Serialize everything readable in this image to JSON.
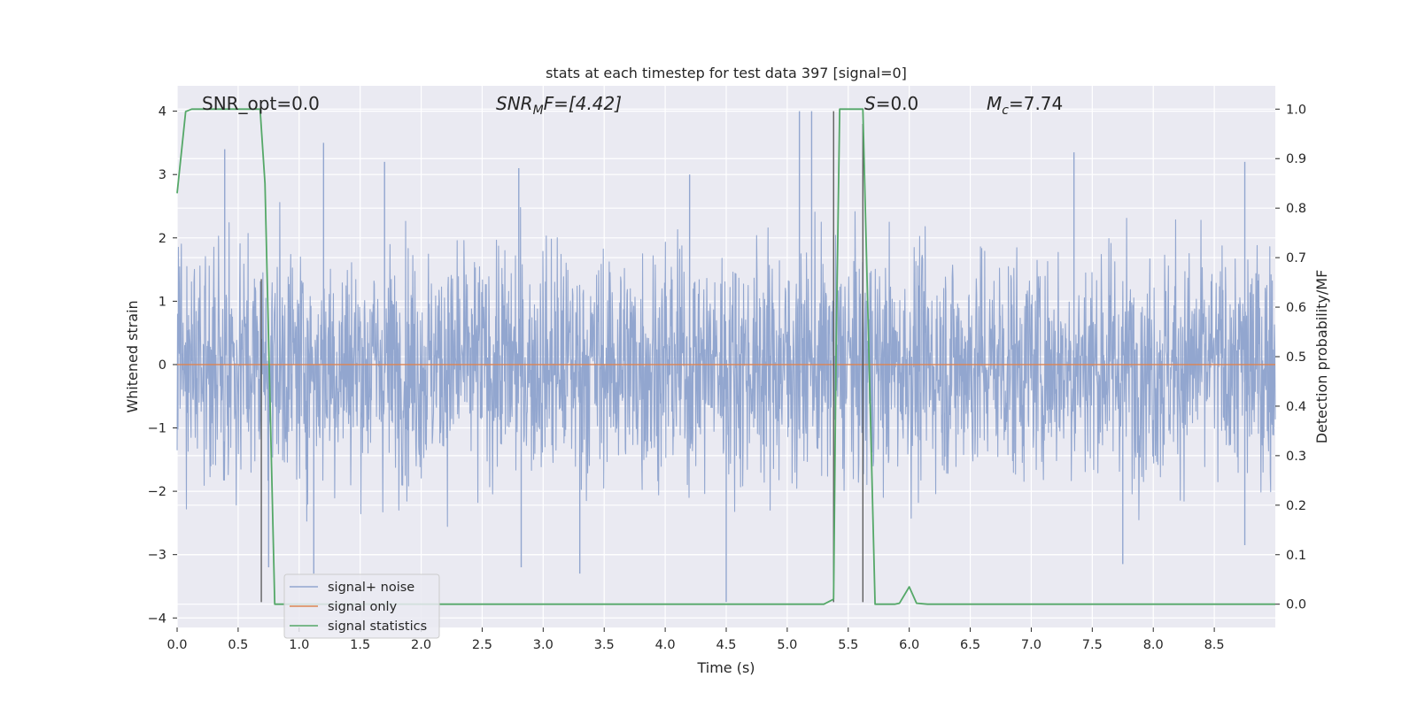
{
  "chart_data": {
    "type": "line",
    "title": "stats at each timestep for test data 397 [signal=0]",
    "xlabel": "Time (s)",
    "ylabel_left": "Whitened strain",
    "ylabel_right": "Detection probability/MF",
    "xlim": [
      0,
      9.0
    ],
    "ylim_left": [
      -4.15,
      4.4
    ],
    "ylim_right": [
      -0.047,
      1.047
    ],
    "x_ticks": [
      "0.0",
      "0.5",
      "1.0",
      "1.5",
      "2.0",
      "2.5",
      "3.0",
      "3.5",
      "4.0",
      "4.5",
      "5.0",
      "5.5",
      "6.0",
      "6.5",
      "7.0",
      "7.5",
      "8.0",
      "8.5"
    ],
    "x_tick_values": [
      0,
      0.5,
      1,
      1.5,
      2,
      2.5,
      3,
      3.5,
      4,
      4.5,
      5,
      5.5,
      6,
      6.5,
      7,
      7.5,
      8,
      8.5
    ],
    "y_left_ticks": [
      "4",
      "3",
      "2",
      "1",
      "0",
      "−1",
      "−2",
      "−3",
      "−4"
    ],
    "y_left_tick_values": [
      4,
      3,
      2,
      1,
      0,
      -1,
      -2,
      -3,
      -4
    ],
    "y_right_ticks": [
      "1.0",
      "0.9",
      "0.8",
      "0.7",
      "0.6",
      "0.5",
      "0.4",
      "0.3",
      "0.2",
      "0.1",
      "0.0"
    ],
    "y_right_tick_values": [
      1.0,
      0.9,
      0.8,
      0.7,
      0.6,
      0.5,
      0.4,
      0.3,
      0.2,
      0.1,
      0.0
    ],
    "grid": true,
    "legend_position": "lower-left",
    "annotations": {
      "snr_opt": "SNR_opt=0.0",
      "snr_mf_label": "SNR",
      "snr_mf_sub": "M",
      "snr_mf_rest": "F=[4.42]",
      "s_label": "S",
      "s_rest": "=0.0",
      "mc_label": "M",
      "mc_sub": "c",
      "mc_rest": "=7.74"
    },
    "series": [
      {
        "name": "signal+ noise",
        "color": "#92a6cf",
        "noise_std": 0.9,
        "peaks": [
          {
            "x": 0.39,
            "y": 3.4
          },
          {
            "x": 1.2,
            "y": 3.5
          },
          {
            "x": 1.7,
            "y": 3.2
          },
          {
            "x": 2.8,
            "y": 3.1
          },
          {
            "x": 4.2,
            "y": 3.0
          },
          {
            "x": 5.1,
            "y": 4.0
          },
          {
            "x": 5.2,
            "y": 4.0
          },
          {
            "x": 7.35,
            "y": 3.35
          },
          {
            "x": 8.75,
            "y": 3.2
          },
          {
            "x": 0.75,
            "y": -3.2
          },
          {
            "x": 1.12,
            "y": -3.3
          },
          {
            "x": 2.82,
            "y": -3.2
          },
          {
            "x": 3.3,
            "y": -3.3
          },
          {
            "x": 4.5,
            "y": -3.75
          },
          {
            "x": 7.75,
            "y": -3.15
          },
          {
            "x": 8.75,
            "y": -2.85
          }
        ]
      },
      {
        "name": "signal only",
        "color": "#dd8452",
        "x": [
          0,
          9.0
        ],
        "y": [
          0,
          0
        ]
      },
      {
        "name": "signal statistics",
        "color": "#55a868",
        "axis": "right",
        "x": [
          0,
          0.07,
          0.12,
          0.25,
          0.68,
          0.72,
          0.8,
          5.3,
          5.38,
          5.4,
          5.43,
          5.6,
          5.62,
          5.72,
          5.88,
          5.92,
          6.0,
          6.06,
          6.15,
          9.0
        ],
        "y": [
          0.83,
          0.995,
          1.0,
          1.0,
          1.0,
          0.85,
          0.0,
          0.0,
          0.01,
          0.5,
          1.0,
          1.0,
          1.0,
          0.0,
          0.0,
          0.002,
          0.035,
          0.002,
          0.0,
          0.0
        ]
      }
    ],
    "vlines": [
      {
        "x": 0.69,
        "y_from": -3.75,
        "y_to": 1.35
      },
      {
        "x": 5.38,
        "y_from": -3.75,
        "y_to": 4.0
      },
      {
        "x": 5.62,
        "y_from": -3.75,
        "y_to": 3.8
      }
    ],
    "colors": {
      "plot_background": "#eaeaf2",
      "grid": "#ffffff",
      "vline": "#555555"
    }
  }
}
